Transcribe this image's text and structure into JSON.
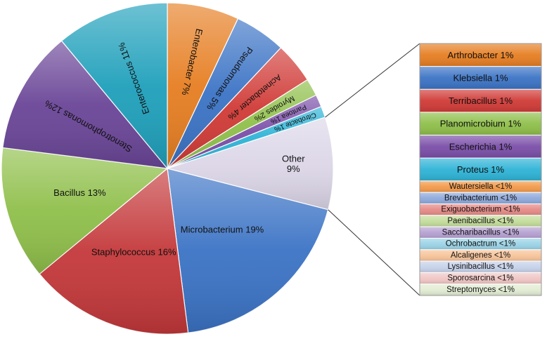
{
  "chart_data": {
    "type": "pie",
    "title": "",
    "slices": [
      {
        "label": "Enterobacter",
        "text": "Enterobacter 7%",
        "value": 7,
        "color": "#e67e22"
      },
      {
        "label": "Pseudomonas",
        "text": "Pseudomonas 5%",
        "value": 5,
        "color": "#3b73c5"
      },
      {
        "label": "Acinetobacter",
        "text": "Acinetobacter 4%",
        "value": 4,
        "color": "#d03a36"
      },
      {
        "label": "Myroides",
        "text": "Myroides 2%",
        "value": 1.7,
        "color": "#8fbf4a"
      },
      {
        "label": "Pantoea",
        "text": "Pantoea 1%",
        "value": 1.2,
        "color": "#7a4ea8"
      },
      {
        "label": "Citrobacte",
        "text": "Citrobacte 1%",
        "value": 1.1,
        "color": "#2eb3d6"
      },
      {
        "label": "Other",
        "text": "Other\n9%",
        "value": 9,
        "color": "#dcd6e8"
      },
      {
        "label": "Microbacterium",
        "text": "Microbacterium 19%",
        "value": 19,
        "color": "#3b73c5"
      },
      {
        "label": "Staphylococcus",
        "text": "Staphylococcus 16%",
        "value": 16,
        "color": "#c4383a"
      },
      {
        "label": "Bacillus",
        "text": "Bacillus 13%",
        "value": 13,
        "color": "#8fbf4a"
      },
      {
        "label": "Stenotrophomonas",
        "text": "Stenotrophomonas 12%",
        "value": 12,
        "color": "#6a4597"
      },
      {
        "label": "Enterococcus",
        "text": "Enterococcus 11%",
        "value": 11,
        "color": "#1fa0bb"
      }
    ],
    "breakdown": {
      "of": "Other",
      "items": [
        {
          "text": "Arthrobacter 1%",
          "value": 1,
          "color": "#e67e22"
        },
        {
          "text": "Klebsiella 1%",
          "value": 1,
          "color": "#3b73c5"
        },
        {
          "text": "Terribacillus 1%",
          "value": 1,
          "color": "#d03a36"
        },
        {
          "text": "Planomicrobium 1%",
          "value": 1,
          "color": "#8fbf4a"
        },
        {
          "text": "Escherichia 1%",
          "value": 1,
          "color": "#7a4ea8"
        },
        {
          "text": "Proteus 1%",
          "value": 1,
          "color": "#2eb3d6"
        },
        {
          "text": "Wautersiella <1%",
          "value": 0.5,
          "color": "#f39a4a"
        },
        {
          "text": "Brevibacterium <1%",
          "value": 0.5,
          "color": "#8ea9db"
        },
        {
          "text": "Exiguobacterium <1%",
          "value": 0.5,
          "color": "#e58a86"
        },
        {
          "text": "Paenibacillus <1%",
          "value": 0.5,
          "color": "#c3dc9a"
        },
        {
          "text": "Saccharibacillus <1%",
          "value": 0.5,
          "color": "#b6a1d2"
        },
        {
          "text": "Ochrobactrum <1%",
          "value": 0.5,
          "color": "#9ad3e6"
        },
        {
          "text": "Alcaligenes <1%",
          "value": 0.5,
          "color": "#f7c49a"
        },
        {
          "text": "Lysinibacillus <1%",
          "value": 0.5,
          "color": "#c6d2ea"
        },
        {
          "text": "Sporosarcina <1%",
          "value": 0.5,
          "color": "#f0c6c4"
        },
        {
          "text": "Streptomyces <1%",
          "value": 0.5,
          "color": "#e2ecd2"
        }
      ]
    }
  }
}
